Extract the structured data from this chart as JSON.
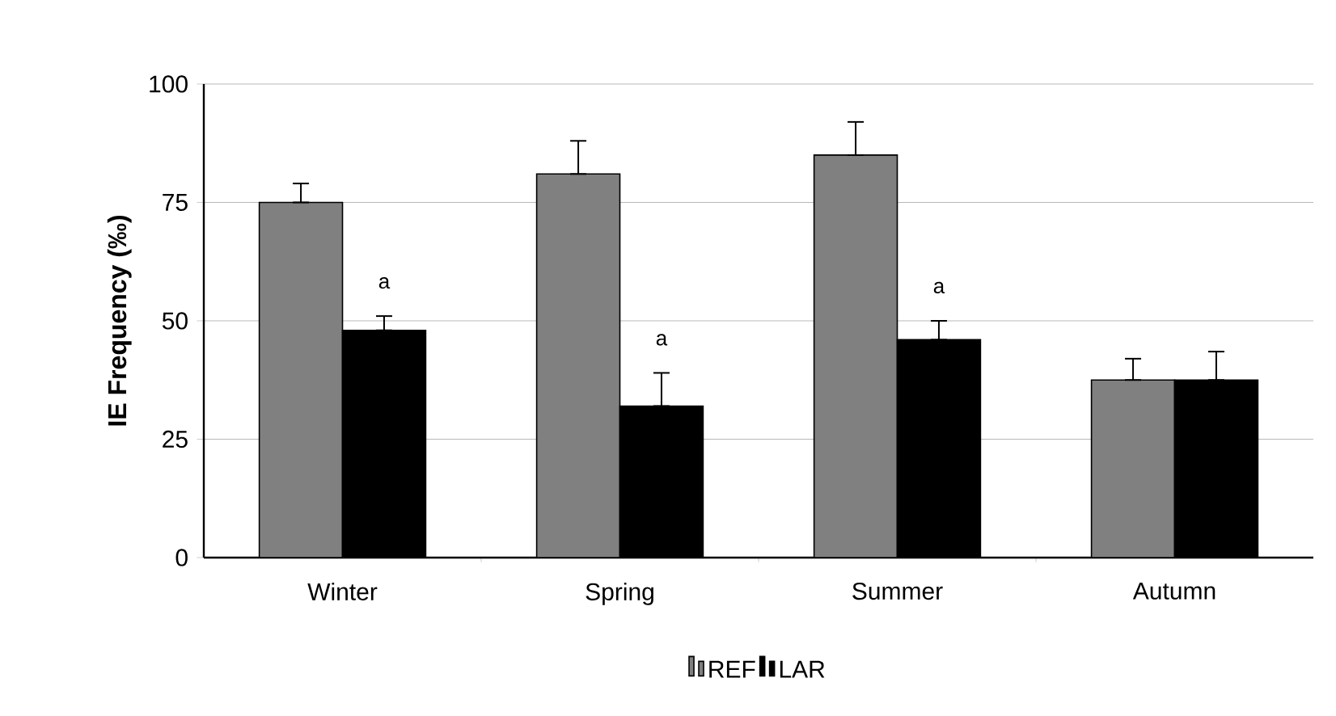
{
  "chart_data": {
    "type": "bar",
    "ylabel": "IE Frequency (‰)",
    "categories": [
      "Winter",
      "Spring",
      "Summer",
      "Autumn"
    ],
    "series": [
      {
        "name": "REF",
        "color": "#808080",
        "values": [
          75,
          81,
          85,
          37.5
        ],
        "errors": [
          [
            75,
            79
          ],
          [
            81,
            88
          ],
          [
            85,
            92
          ],
          [
            37.5,
            42
          ]
        ]
      },
      {
        "name": "LAR",
        "color": "#000000",
        "values": [
          48,
          32,
          46,
          37.5
        ],
        "errors": [
          [
            48,
            51
          ],
          [
            32,
            39
          ],
          [
            46,
            50
          ],
          [
            37.5,
            43.5
          ]
        ]
      }
    ],
    "ylim": [
      0,
      100
    ],
    "yticks": [
      0,
      25,
      50,
      75,
      100
    ],
    "grid": "y",
    "legend": "bottom",
    "annotations": [
      {
        "text": "a",
        "x": "Winter",
        "y": 58
      },
      {
        "text": "a",
        "x": "Spring",
        "y": 46
      },
      {
        "text": "a",
        "x": "Summer",
        "y": 57
      }
    ]
  }
}
